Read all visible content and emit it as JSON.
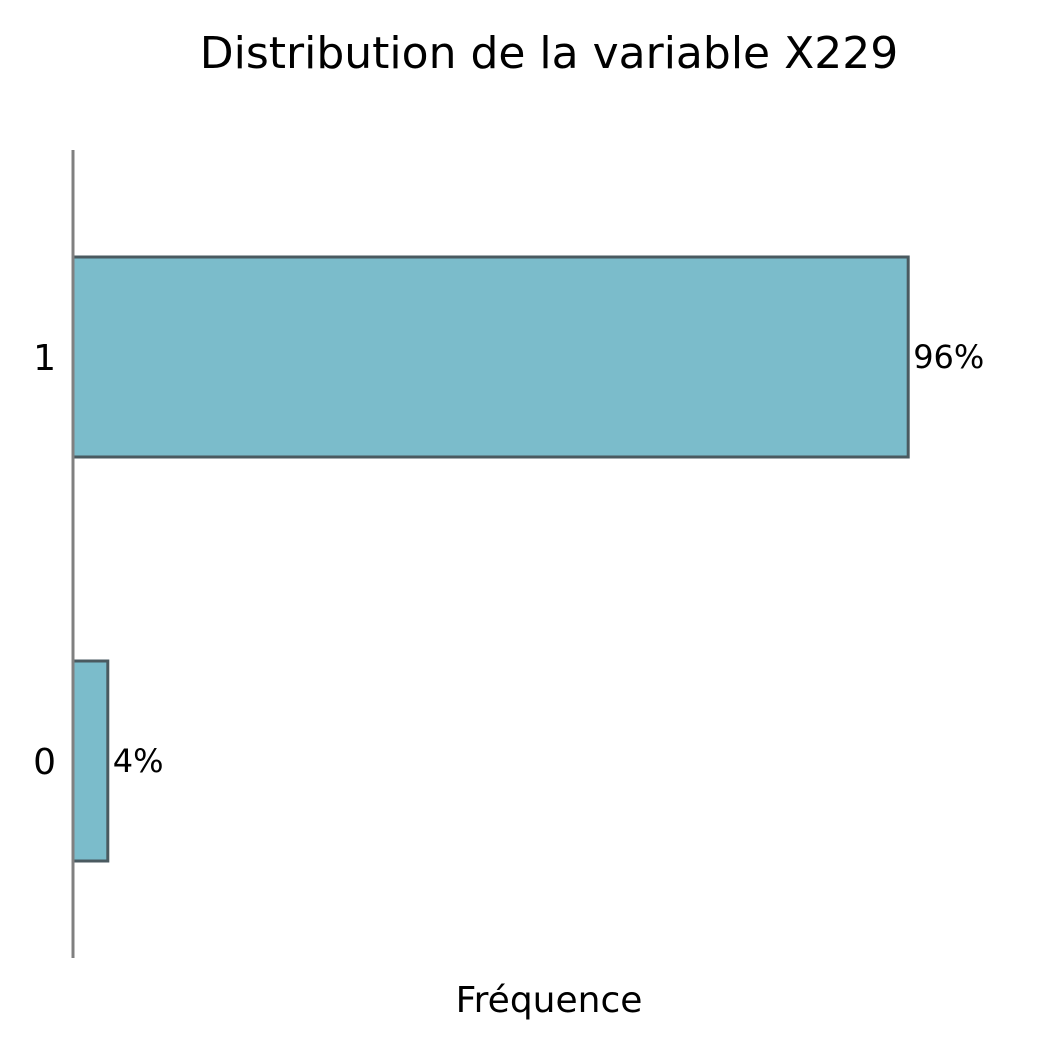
{
  "chart_data": {
    "type": "bar",
    "orientation": "horizontal",
    "title": "Distribution de la variable X229",
    "xlabel": "Fréquence",
    "ylabel": "",
    "categories": [
      "1",
      "0"
    ],
    "values": [
      96,
      4
    ],
    "value_labels": [
      "96%",
      "4%"
    ],
    "value_unit": "percent",
    "xlim": [
      0,
      100
    ],
    "grid": false,
    "legend": "none",
    "colors": {
      "bar_fill": "#7bbccb",
      "bar_edge": "#4a5a60",
      "axis_line": "#808080",
      "text": "#000000"
    }
  }
}
